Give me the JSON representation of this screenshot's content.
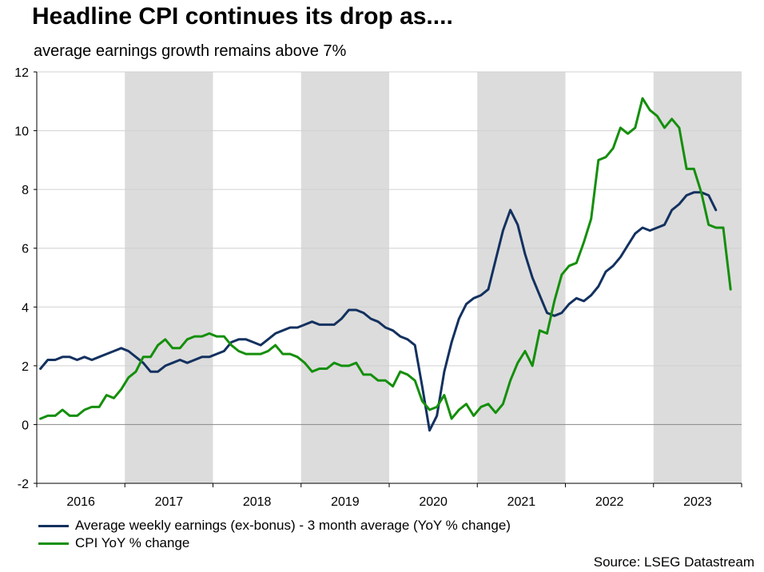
{
  "title": "Headline CPI continues its drop as....",
  "subtitle": "average earnings growth remains above 7%",
  "source": "Source: LSEG Datastream",
  "chart_data": {
    "type": "line",
    "x_start": "2016-01",
    "frequency": "monthly",
    "xlabels": [
      "2016",
      "2017",
      "2018",
      "2019",
      "2020",
      "2021",
      "2022",
      "2023"
    ],
    "shaded_years": [
      "2017",
      "2019",
      "2021",
      "2023"
    ],
    "yticks": [
      -2,
      0,
      2,
      4,
      6,
      8,
      10,
      12
    ],
    "ylim": [
      -2,
      12
    ],
    "series": [
      {
        "name": "Average weekly earnings (ex-bonus) - 3 month average (YoY % change)",
        "color": "#13315f",
        "values": [
          1.9,
          2.2,
          2.2,
          2.3,
          2.3,
          2.2,
          2.3,
          2.2,
          2.3,
          2.4,
          2.5,
          2.6,
          2.5,
          2.3,
          2.1,
          1.8,
          1.8,
          2.0,
          2.1,
          2.2,
          2.1,
          2.2,
          2.3,
          2.3,
          2.4,
          2.5,
          2.8,
          2.9,
          2.9,
          2.8,
          2.7,
          2.9,
          3.1,
          3.2,
          3.3,
          3.3,
          3.4,
          3.5,
          3.4,
          3.4,
          3.4,
          3.6,
          3.9,
          3.9,
          3.8,
          3.6,
          3.5,
          3.3,
          3.2,
          3.0,
          2.9,
          2.7,
          1.3,
          -0.2,
          0.3,
          1.8,
          2.8,
          3.6,
          4.1,
          4.3,
          4.4,
          4.6,
          5.6,
          6.6,
          7.3,
          6.8,
          5.8,
          5.0,
          4.4,
          3.8,
          3.7,
          3.8,
          4.1,
          4.3,
          4.2,
          4.4,
          4.7,
          5.2,
          5.4,
          5.7,
          6.1,
          6.5,
          6.7,
          6.6,
          6.7,
          6.8,
          7.3,
          7.5,
          7.8,
          7.9,
          7.9,
          7.8,
          7.3
        ]
      },
      {
        "name": "CPI YoY % change",
        "color": "#148f0b",
        "values": [
          0.2,
          0.3,
          0.3,
          0.5,
          0.3,
          0.3,
          0.5,
          0.6,
          0.6,
          1.0,
          0.9,
          1.2,
          1.6,
          1.8,
          2.3,
          2.3,
          2.7,
          2.9,
          2.6,
          2.6,
          2.9,
          3.0,
          3.0,
          3.1,
          3.0,
          3.0,
          2.7,
          2.5,
          2.4,
          2.4,
          2.4,
          2.5,
          2.7,
          2.4,
          2.4,
          2.3,
          2.1,
          1.8,
          1.9,
          1.9,
          2.1,
          2.0,
          2.0,
          2.1,
          1.7,
          1.7,
          1.5,
          1.5,
          1.3,
          1.8,
          1.7,
          1.5,
          0.8,
          0.5,
          0.6,
          1.0,
          0.2,
          0.5,
          0.7,
          0.3,
          0.6,
          0.7,
          0.4,
          0.7,
          1.5,
          2.1,
          2.5,
          2.0,
          3.2,
          3.1,
          4.2,
          5.1,
          5.4,
          5.5,
          6.2,
          7.0,
          9.0,
          9.1,
          9.4,
          10.1,
          9.9,
          10.1,
          11.1,
          10.7,
          10.5,
          10.1,
          10.4,
          10.1,
          8.7,
          8.7,
          7.9,
          6.8,
          6.7,
          6.7,
          4.6
        ]
      }
    ]
  }
}
